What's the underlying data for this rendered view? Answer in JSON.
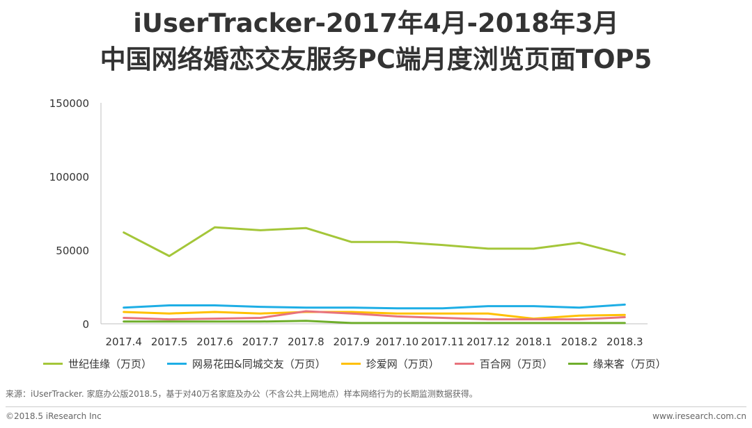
{
  "title_line1": "iUserTracker-2017年4月-2018年3月",
  "title_line2": "中国网络婚恋交友服务PC端月度浏览页面TOP5",
  "chart_data": {
    "type": "line",
    "categories": [
      "2017.4",
      "2017.5",
      "2017.6",
      "2017.7",
      "2017.8",
      "2017.9",
      "2017.10",
      "2017.11",
      "2017.12",
      "2018.1",
      "2018.2",
      "2018.3"
    ],
    "ylim": [
      0,
      150000
    ],
    "yticks": [
      "0",
      "50000",
      "100000",
      "150000"
    ],
    "grid": false,
    "legend_position": "bottom",
    "series": [
      {
        "name": "世纪佳缘（万页）",
        "color": "#a4c639",
        "values": [
          62000,
          46000,
          65500,
          63500,
          65000,
          55500,
          55500,
          53500,
          51000,
          51000,
          55000,
          47000
        ]
      },
      {
        "name": "网易花田&同城交友（万页）",
        "color": "#1eaee5",
        "values": [
          11000,
          12500,
          12500,
          11500,
          11000,
          11000,
          10500,
          10500,
          12000,
          12000,
          11000,
          13000
        ]
      },
      {
        "name": "珍爱网（万页）",
        "color": "#ffc000",
        "values": [
          8000,
          7000,
          8000,
          7000,
          8000,
          8000,
          7000,
          7000,
          7000,
          3500,
          5500,
          6000
        ]
      },
      {
        "name": "百合网（万页）",
        "color": "#e8737c",
        "values": [
          4000,
          3000,
          3500,
          4000,
          8500,
          7000,
          5000,
          4000,
          3000,
          3000,
          3000,
          4500
        ]
      },
      {
        "name": "缘来客（万页）",
        "color": "#6fae2c",
        "values": [
          1500,
          1500,
          1500,
          1500,
          2000,
          500,
          500,
          500,
          500,
          500,
          500,
          500
        ]
      }
    ]
  },
  "source_text": "来源：iUserTracker. 家庭办公版2018.5，基于对40万名家庭及办公（不含公共上网地点）样本网络行为的长期监测数据获得。",
  "copyright": "©2018.5 iResearch Inc",
  "website": "www.iresearch.com.cn"
}
